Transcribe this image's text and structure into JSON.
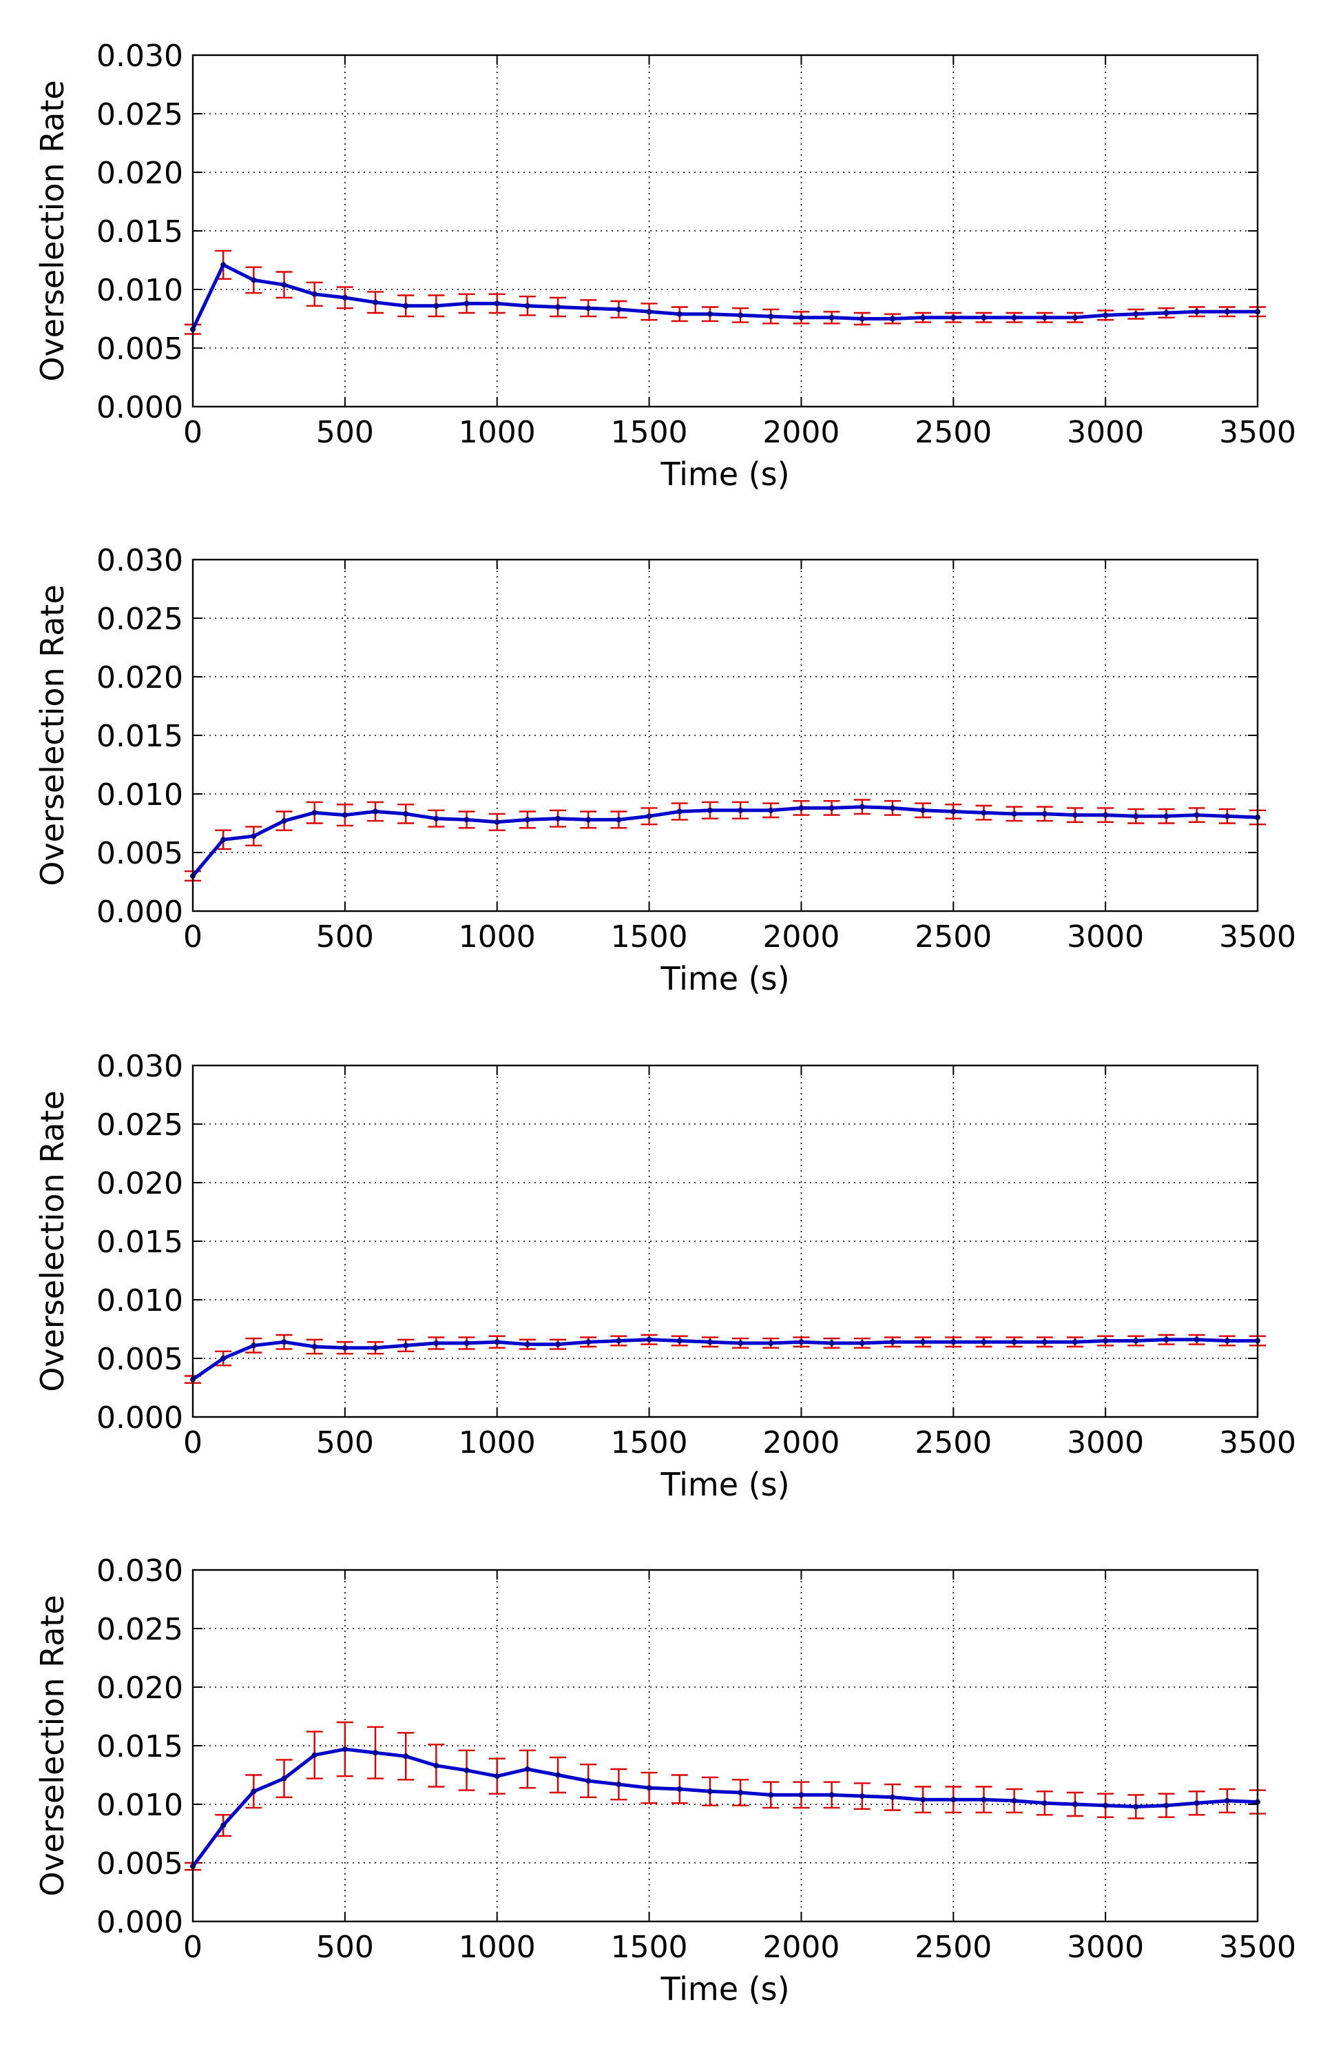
{
  "chart_data": [
    {
      "type": "line",
      "title": "",
      "xlabel": "Time (s)",
      "ylabel": "Overselection Rate",
      "xlim": [
        0,
        3500
      ],
      "ylim": [
        0,
        0.03
      ],
      "xticks": [
        "0",
        "500",
        "1000",
        "1500",
        "2000",
        "2500",
        "3000",
        "3500"
      ],
      "yticks": [
        "0.000",
        "0.005",
        "0.010",
        "0.015",
        "0.020",
        "0.025",
        "0.030"
      ],
      "grid": true,
      "line_color": "#0000cc",
      "error_color": "#dd0000",
      "x": [
        0,
        100,
        200,
        300,
        400,
        500,
        600,
        700,
        800,
        900,
        1000,
        1100,
        1200,
        1300,
        1400,
        1500,
        1600,
        1700,
        1800,
        1900,
        2000,
        2100,
        2200,
        2300,
        2400,
        2500,
        2600,
        2700,
        2800,
        2900,
        3000,
        3100,
        3200,
        3300,
        3400,
        3500
      ],
      "series": [
        {
          "values": [
            0.0066,
            0.0121,
            0.0108,
            0.0104,
            0.0096,
            0.0093,
            0.0089,
            0.0086,
            0.0086,
            0.0088,
            0.0088,
            0.0086,
            0.0085,
            0.0084,
            0.0083,
            0.0081,
            0.0079,
            0.0079,
            0.0078,
            0.0077,
            0.0076,
            0.0076,
            0.0075,
            0.0075,
            0.0076,
            0.0076,
            0.0076,
            0.0076,
            0.0076,
            0.0076,
            0.0078,
            0.0079,
            0.008,
            0.0081,
            0.0081,
            0.0081
          ],
          "errors": [
            0.0004,
            0.0012,
            0.0011,
            0.0011,
            0.001,
            0.0009,
            0.0009,
            0.0009,
            0.0009,
            0.0008,
            0.0008,
            0.0008,
            0.0008,
            0.0007,
            0.0007,
            0.0007,
            0.0006,
            0.0006,
            0.0006,
            0.0006,
            0.0005,
            0.0005,
            0.0005,
            0.0004,
            0.0004,
            0.0004,
            0.0004,
            0.0004,
            0.0004,
            0.0004,
            0.0004,
            0.0004,
            0.0004,
            0.0004,
            0.0004,
            0.0004
          ]
        }
      ]
    },
    {
      "type": "line",
      "title": "",
      "xlabel": "Time (s)",
      "ylabel": "Overselection Rate",
      "xlim": [
        0,
        3500
      ],
      "ylim": [
        0,
        0.03
      ],
      "xticks": [
        "0",
        "500",
        "1000",
        "1500",
        "2000",
        "2500",
        "3000",
        "3500"
      ],
      "yticks": [
        "0.000",
        "0.005",
        "0.010",
        "0.015",
        "0.020",
        "0.025",
        "0.030"
      ],
      "grid": true,
      "line_color": "#0000cc",
      "error_color": "#dd0000",
      "x": [
        0,
        100,
        200,
        300,
        400,
        500,
        600,
        700,
        800,
        900,
        1000,
        1100,
        1200,
        1300,
        1400,
        1500,
        1600,
        1700,
        1800,
        1900,
        2000,
        2100,
        2200,
        2300,
        2400,
        2500,
        2600,
        2700,
        2800,
        2900,
        3000,
        3100,
        3200,
        3300,
        3400,
        3500
      ],
      "series": [
        {
          "values": [
            0.003,
            0.0061,
            0.0064,
            0.0077,
            0.0084,
            0.0082,
            0.0085,
            0.0083,
            0.0079,
            0.0078,
            0.0076,
            0.0078,
            0.0079,
            0.0078,
            0.0078,
            0.0081,
            0.0085,
            0.0086,
            0.0086,
            0.0086,
            0.0088,
            0.0088,
            0.0089,
            0.0088,
            0.0086,
            0.0085,
            0.0084,
            0.0083,
            0.0083,
            0.0082,
            0.0082,
            0.0081,
            0.0081,
            0.0082,
            0.0081,
            0.008
          ]
        }
      ],
      "errors": [
        0.0004,
        0.0008,
        0.0008,
        0.0008,
        0.0009,
        0.0009,
        0.0008,
        0.0008,
        0.0007,
        0.0007,
        0.0007,
        0.0007,
        0.0007,
        0.0007,
        0.0007,
        0.0007,
        0.0007,
        0.0007,
        0.0007,
        0.0006,
        0.0006,
        0.0006,
        0.0006,
        0.0006,
        0.0006,
        0.0006,
        0.0006,
        0.0006,
        0.0006,
        0.0006,
        0.0006,
        0.0006,
        0.0006,
        0.0006,
        0.0006,
        0.0006
      ]
    },
    {
      "type": "line",
      "title": "",
      "xlabel": "Time (s)",
      "ylabel": "Overselection Rate",
      "xlim": [
        0,
        3500
      ],
      "ylim": [
        0,
        0.03
      ],
      "xticks": [
        "0",
        "500",
        "1000",
        "1500",
        "2000",
        "2500",
        "3000",
        "3500"
      ],
      "yticks": [
        "0.000",
        "0.005",
        "0.010",
        "0.015",
        "0.020",
        "0.025",
        "0.030"
      ],
      "grid": true,
      "line_color": "#0000cc",
      "error_color": "#dd0000",
      "x": [
        0,
        100,
        200,
        300,
        400,
        500,
        600,
        700,
        800,
        900,
        1000,
        1100,
        1200,
        1300,
        1400,
        1500,
        1600,
        1700,
        1800,
        1900,
        2000,
        2100,
        2200,
        2300,
        2400,
        2500,
        2600,
        2700,
        2800,
        2900,
        3000,
        3100,
        3200,
        3300,
        3400,
        3500
      ],
      "series": [
        {
          "values": [
            0.0032,
            0.005,
            0.0061,
            0.0064,
            0.006,
            0.0059,
            0.0059,
            0.0061,
            0.0063,
            0.0063,
            0.0064,
            0.0062,
            0.0062,
            0.0064,
            0.0065,
            0.0066,
            0.0065,
            0.0064,
            0.0063,
            0.0063,
            0.0064,
            0.0063,
            0.0063,
            0.0064,
            0.0064,
            0.0064,
            0.0064,
            0.0064,
            0.0064,
            0.0064,
            0.0065,
            0.0065,
            0.0066,
            0.0066,
            0.0065,
            0.0065
          ]
        }
      ],
      "errors": [
        0.0003,
        0.0006,
        0.0006,
        0.0006,
        0.0006,
        0.0005,
        0.0005,
        0.0005,
        0.0005,
        0.0005,
        0.0005,
        0.0004,
        0.0004,
        0.0004,
        0.0004,
        0.0004,
        0.0004,
        0.0004,
        0.0004,
        0.0004,
        0.0004,
        0.0004,
        0.0004,
        0.0004,
        0.0004,
        0.0004,
        0.0004,
        0.0004,
        0.0004,
        0.0004,
        0.0004,
        0.0004,
        0.0004,
        0.0004,
        0.0004,
        0.0004
      ]
    },
    {
      "type": "line",
      "title": "",
      "xlabel": "Time (s)",
      "ylabel": "Overselection Rate",
      "xlim": [
        0,
        3500
      ],
      "ylim": [
        0,
        0.03
      ],
      "xticks": [
        "0",
        "500",
        "1000",
        "1500",
        "2000",
        "2500",
        "3000",
        "3500"
      ],
      "yticks": [
        "0.000",
        "0.005",
        "0.010",
        "0.015",
        "0.020",
        "0.025",
        "0.030"
      ],
      "grid": true,
      "line_color": "#0000cc",
      "error_color": "#dd0000",
      "x": [
        0,
        100,
        200,
        300,
        400,
        500,
        600,
        700,
        800,
        900,
        1000,
        1100,
        1200,
        1300,
        1400,
        1500,
        1600,
        1700,
        1800,
        1900,
        2000,
        2100,
        2200,
        2300,
        2400,
        2500,
        2600,
        2700,
        2800,
        2900,
        3000,
        3100,
        3200,
        3300,
        3400,
        3500
      ],
      "series": [
        {
          "values": [
            0.0047,
            0.0082,
            0.0111,
            0.0122,
            0.0142,
            0.0147,
            0.0144,
            0.0141,
            0.0133,
            0.0129,
            0.0124,
            0.013,
            0.0125,
            0.012,
            0.0117,
            0.0114,
            0.0113,
            0.0111,
            0.011,
            0.0108,
            0.0108,
            0.0108,
            0.0107,
            0.0106,
            0.0104,
            0.0104,
            0.0104,
            0.0103,
            0.0101,
            0.01,
            0.0099,
            0.0098,
            0.0099,
            0.0101,
            0.0103,
            0.0102
          ]
        }
      ],
      "errors": [
        0.0003,
        0.0009,
        0.0014,
        0.0016,
        0.002,
        0.0023,
        0.0022,
        0.002,
        0.0018,
        0.0017,
        0.0015,
        0.0016,
        0.0015,
        0.0014,
        0.0013,
        0.0013,
        0.0012,
        0.0012,
        0.0011,
        0.0011,
        0.0011,
        0.0011,
        0.0011,
        0.0011,
        0.0011,
        0.0011,
        0.0011,
        0.001,
        0.001,
        0.001,
        0.001,
        0.001,
        0.001,
        0.001,
        0.001,
        0.001
      ]
    }
  ]
}
